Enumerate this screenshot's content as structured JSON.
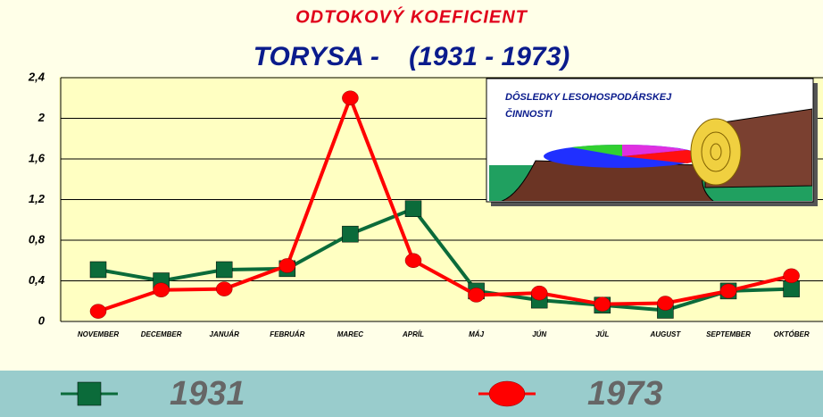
{
  "chart_data": {
    "type": "line",
    "title": "ODTOKOVÝ KOEFICIENT",
    "subtitle": "TORYSA -    (1931 - 1973)",
    "inset_text": [
      "DÔSLEDKY LESOHOSPODÁRSKEJ",
      "ČINNOSTI"
    ],
    "categories": [
      "NOVEMBER",
      "DECEMBER",
      "JANUÁR",
      "FEBRUÁR",
      "MAREC",
      "APRÍL",
      "MÁJ",
      "JÚN",
      "JÚL",
      "AUGUST",
      "SEPTEMBER",
      "OKTÓBER"
    ],
    "series": [
      {
        "name": "1931",
        "color": "#0b6b3a",
        "marker": "square",
        "values": [
          0.51,
          0.4,
          0.51,
          0.52,
          0.86,
          1.11,
          0.3,
          0.21,
          0.16,
          0.11,
          0.3,
          0.32
        ]
      },
      {
        "name": "1973",
        "color": "#ff0000",
        "marker": "circle",
        "values": [
          0.1,
          0.31,
          0.32,
          0.55,
          2.2,
          0.6,
          0.26,
          0.28,
          0.17,
          0.18,
          0.3,
          0.45
        ]
      }
    ],
    "ylim": [
      0,
      2.4
    ],
    "yticks": [
      0,
      {
        "value": 0.4,
        "label": "0,4"
      },
      {
        "value": 0.8,
        "label": "0,8"
      },
      {
        "value": 1.2,
        "label": "1,2"
      },
      {
        "value": 1.6,
        "label": "1,6"
      },
      2,
      {
        "value": 2.4,
        "label": "2,4"
      }
    ],
    "grid": true
  }
}
